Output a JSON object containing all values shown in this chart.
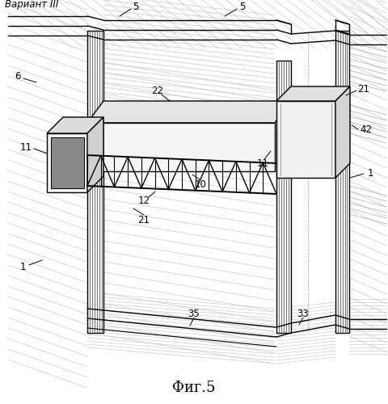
{
  "title": "Вариант III",
  "fig_label": "Фиг.5",
  "bg_color": "#ffffff",
  "line_color": "#000000",
  "light_line": "#aaaaaa"
}
